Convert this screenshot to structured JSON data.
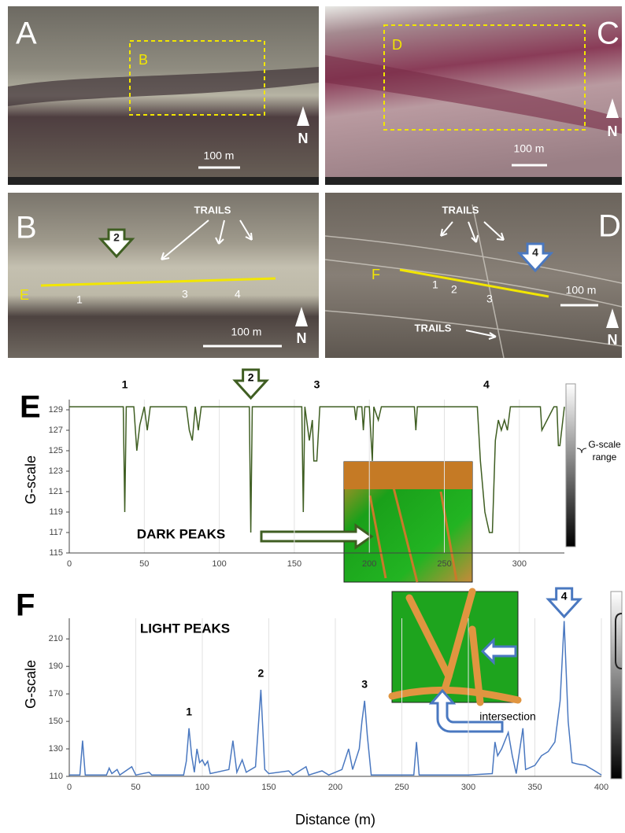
{
  "panels": [
    {
      "label": "A",
      "box_label": "B",
      "scale": "100 m",
      "north": "N"
    },
    {
      "label": "C",
      "box_label": "D",
      "scale": "100 m",
      "north": "N"
    },
    {
      "label": "B",
      "trails": "TRAILS",
      "marker": "2",
      "line_label": "E",
      "points": [
        "1",
        "3",
        "4"
      ],
      "scale": "100 m",
      "north": "N"
    },
    {
      "label": "D",
      "trails": "TRAILS",
      "marker": "4",
      "line_label": "F",
      "points": [
        "1",
        "2",
        "3"
      ],
      "scale": "100 m",
      "north": "N",
      "trails_2": "TRAILS"
    }
  ],
  "colorbar_label": [
    "G-scale",
    "range"
  ],
  "chart_data": [
    {
      "type": "line",
      "panel_label": "E",
      "y_label": "G-scale",
      "annotation": "DARK PEAKS",
      "color": "#3f5e22",
      "grid": true,
      "x": [
        0,
        36,
        37,
        38,
        43,
        45,
        47,
        50,
        52,
        54,
        78,
        80,
        82,
        84,
        86,
        88,
        120,
        121,
        122,
        155,
        156,
        157,
        160,
        162,
        163,
        165,
        167,
        190,
        191,
        192,
        195,
        196,
        197,
        200,
        202,
        203,
        206,
        208,
        230,
        231,
        232,
        272,
        274,
        277,
        280,
        282,
        284,
        286,
        288,
        290,
        292,
        294,
        313,
        314,
        315,
        323,
        325,
        326,
        327,
        330
      ],
      "values": [
        129.3,
        129.3,
        119,
        129.3,
        129.3,
        125,
        127.5,
        129.3,
        127,
        129.3,
        129.3,
        127,
        126,
        129.3,
        127,
        129.3,
        129.3,
        117,
        129.3,
        129.3,
        119,
        129.3,
        126,
        128,
        124,
        124,
        129.3,
        129.3,
        128,
        129.3,
        129.3,
        127,
        129.3,
        129.3,
        124,
        129.3,
        128,
        129.3,
        129.3,
        127,
        129.3,
        129.3,
        124,
        119,
        117,
        117,
        126,
        128,
        127,
        128,
        127,
        129.3,
        129.3,
        129.3,
        127,
        129.3,
        129.3,
        125.5,
        125.5,
        129.3
      ],
      "xlim": [
        0,
        330
      ],
      "ylim": [
        115,
        130
      ],
      "xticks": [
        0,
        50,
        100,
        150,
        200,
        250,
        300
      ],
      "yticks": [
        115,
        117,
        119,
        121,
        123,
        125,
        127,
        129
      ],
      "peak_labels": [
        {
          "label": "1",
          "x": 37
        },
        {
          "label": "2",
          "x": 121,
          "arrow": true
        },
        {
          "label": "3",
          "x": 165
        },
        {
          "label": "4",
          "x": 278
        }
      ]
    },
    {
      "type": "line",
      "panel_label": "F",
      "y_label": "G-scale",
      "x_label": "Distance (m)",
      "annotation": "LIGHT PEAKS",
      "inset_label": "intersection",
      "color": "#4a78c0",
      "grid": true,
      "x": [
        0,
        8,
        10,
        12,
        28,
        30,
        32,
        36,
        38,
        47,
        50,
        60,
        62,
        86,
        88,
        90,
        92,
        94,
        96,
        98,
        100,
        102,
        104,
        106,
        120,
        123,
        126,
        130,
        133,
        140,
        144,
        147,
        150,
        165,
        168,
        178,
        180,
        190,
        195,
        205,
        210,
        213,
        218,
        220,
        222,
        224,
        227,
        240,
        259,
        261,
        263,
        300,
        318,
        320,
        322,
        325,
        330,
        333,
        336,
        341,
        343,
        350,
        355,
        360,
        365,
        369,
        372,
        375,
        378,
        382,
        388,
        395,
        400
      ],
      "values": [
        111,
        111,
        136,
        111,
        111,
        116,
        112,
        115,
        111,
        117,
        111,
        113,
        111,
        111,
        121,
        145,
        125,
        113,
        130,
        120,
        122,
        118,
        121,
        112,
        115,
        136,
        113,
        122,
        113,
        117,
        173,
        115,
        112,
        114,
        111,
        117,
        111,
        114,
        111,
        115,
        130,
        115,
        130,
        150,
        165,
        140,
        111,
        111,
        111,
        135,
        111,
        111,
        112,
        135,
        125,
        130,
        142,
        125,
        112,
        145,
        115,
        118,
        125,
        128,
        135,
        165,
        223,
        150,
        120,
        119,
        118,
        114,
        111
      ],
      "xlim": [
        0,
        400
      ],
      "ylim": [
        110,
        225
      ],
      "xticks": [
        0,
        50,
        100,
        150,
        200,
        250,
        300,
        350,
        400
      ],
      "yticks": [
        110,
        130,
        150,
        170,
        190,
        210
      ],
      "peak_labels": [
        {
          "label": "1",
          "x": 90
        },
        {
          "label": "2",
          "x": 144
        },
        {
          "label": "3",
          "x": 222
        },
        {
          "label": "4",
          "x": 372,
          "arrow": true
        }
      ]
    }
  ]
}
